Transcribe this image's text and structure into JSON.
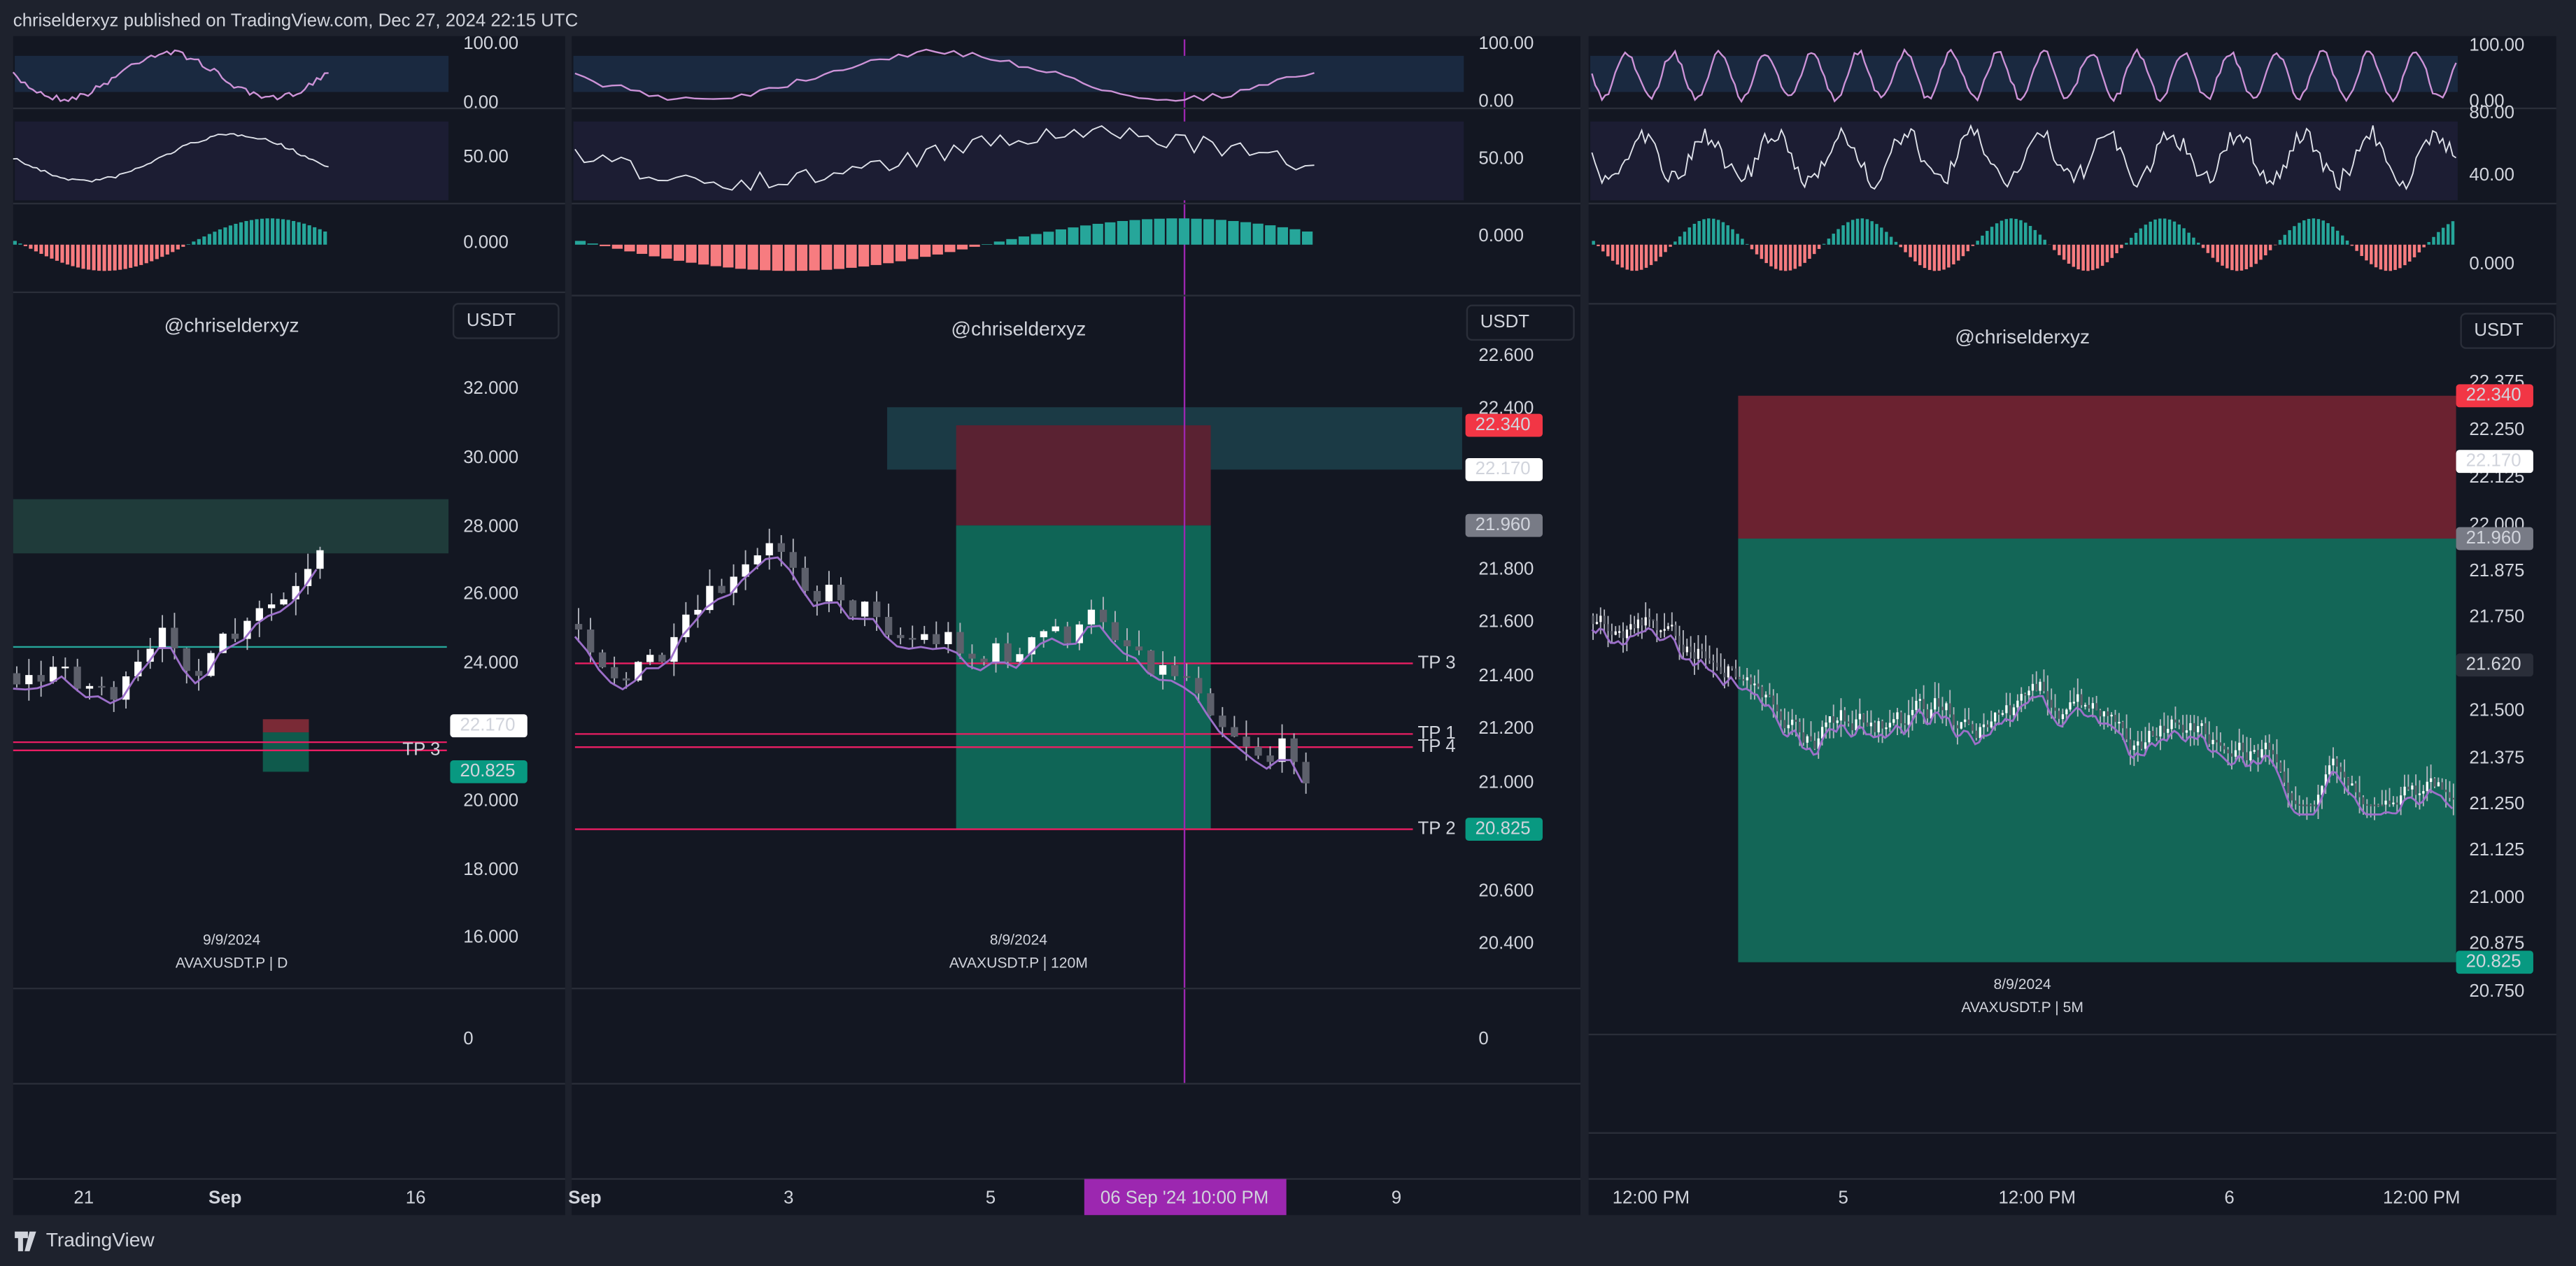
{
  "header": {
    "publisher": "chriselderxyz published on TradingView.com, Dec 27, 2024 22:15 UTC"
  },
  "panels": [
    {
      "osc_ticks": [
        "100.00",
        "0.00",
        "50.00",
        "0.000"
      ],
      "watermark": "@chriselderxyz",
      "currency": "USDT",
      "price_ticks": [
        "32.000",
        "30.000",
        "28.000",
        "26.000",
        "24.000",
        "20.000",
        "18.000",
        "16.000"
      ],
      "price_labels": [
        "22.170",
        "20.825"
      ],
      "level_labels": [
        "TP 3"
      ],
      "date": "9/9/2024",
      "symbol": "AVAXUSDT.P | D",
      "volume_tick": "0",
      "time_ticks": [
        "21",
        "Sep",
        "16"
      ]
    },
    {
      "osc_ticks": [
        "100.00",
        "0.00",
        "50.00",
        "0.000"
      ],
      "watermark": "@chriselderxyz",
      "currency": "USDT",
      "price_ticks": [
        "22.600",
        "22.400",
        "21.800",
        "21.600",
        "21.400",
        "21.200",
        "21.000",
        "20.600",
        "20.400"
      ],
      "price_labels": [
        "22.340",
        "22.170",
        "21.960",
        "20.825"
      ],
      "level_labels": [
        "TP 3",
        "TP 1",
        "TP 4",
        "TP 2"
      ],
      "date": "8/9/2024",
      "symbol": "AVAXUSDT.P | 120M",
      "volume_tick": "0",
      "time_ticks": [
        "Sep",
        "3",
        "5",
        "9"
      ],
      "crosshair_time": "06 Sep '24 10:00 PM"
    },
    {
      "osc_ticks": [
        "100.00",
        "0.00",
        "80.00",
        "40.00",
        "0.000"
      ],
      "watermark": "@chriselderxyz",
      "currency": "USDT",
      "price_ticks": [
        "22.375",
        "22.250",
        "22.125",
        "22.000",
        "21.875",
        "21.750",
        "21.500",
        "21.375",
        "21.250",
        "21.125",
        "21.000",
        "20.875",
        "20.750"
      ],
      "price_labels": [
        "22.340",
        "22.170",
        "21.960",
        "21.620",
        "20.825"
      ],
      "date": "8/9/2024",
      "symbol": "AVAXUSDT.P | 5M",
      "time_ticks": [
        "12:00 PM",
        "5",
        "12:00 PM",
        "6",
        "12:00 PM"
      ]
    }
  ],
  "footer": {
    "brand": "TradingView"
  }
}
